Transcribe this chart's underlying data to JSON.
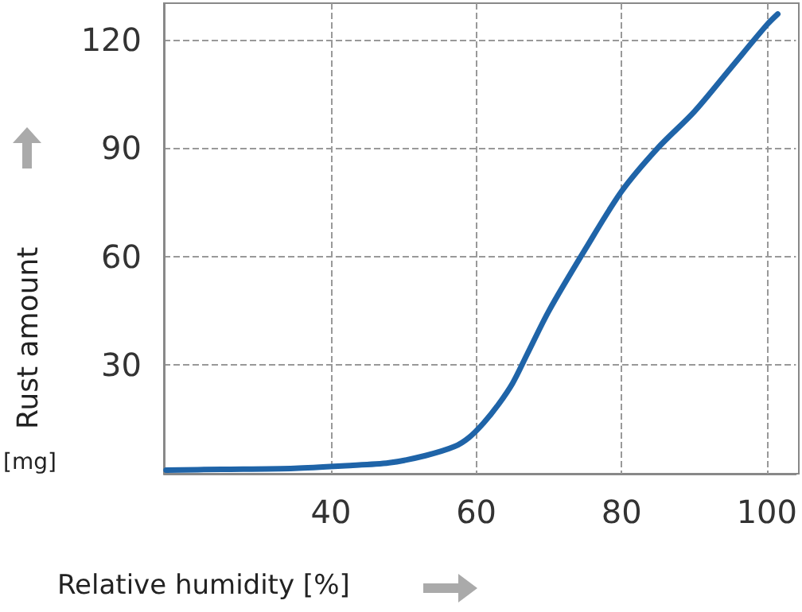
{
  "chart_data": {
    "type": "line",
    "xlabel": "Relative humidity [%]",
    "ylabel": "Rust amount",
    "annotations": [
      "[mg]"
    ],
    "x": [
      17.3,
      25,
      35,
      42,
      48,
      53,
      57,
      59,
      61,
      63,
      65,
      67,
      70,
      75,
      80,
      85,
      90,
      95,
      100,
      101.5
    ],
    "series": [
      {
        "color": "#1f64a8",
        "values": [
          1,
          1.2,
          1.5,
          2.2,
          3,
          5,
          7.5,
          10,
          14,
          19,
          25,
          33,
          45,
          62,
          78,
          90,
          100,
          112,
          124,
          127
        ]
      }
    ],
    "xlim": [
      17,
      104
    ],
    "xticks": [
      40,
      60,
      80,
      100
    ],
    "ylim": [
      0,
      130
    ],
    "yticks": [
      30,
      60,
      90,
      120
    ],
    "grid": true,
    "marker": "none",
    "line_style": "solid"
  }
}
